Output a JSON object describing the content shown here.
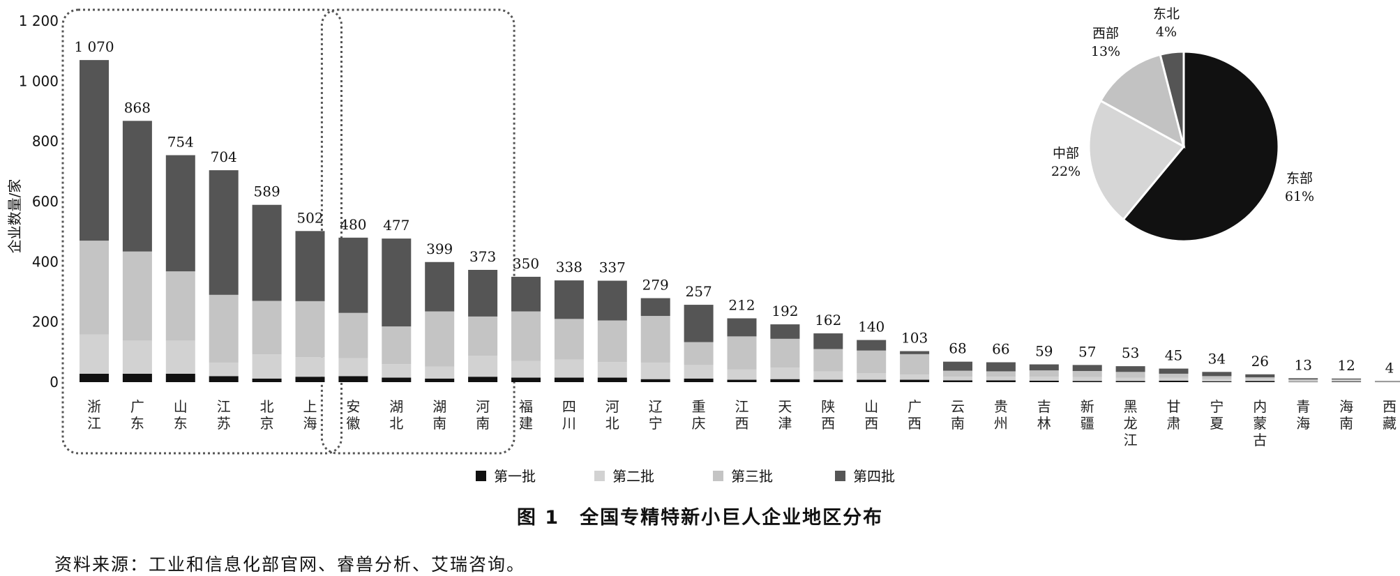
{
  "figure": {
    "title": "图 1　全国专精特新小巨人企业地区分布",
    "source": "资料来源：工业和信息化部官网、睿兽分析、艾瑞咨询。"
  },
  "chart_data": [
    {
      "type": "bar",
      "stacked": true,
      "ylabel": "企业数量/家",
      "ylim": [
        0,
        1200
      ],
      "yticks": [
        "0",
        "200",
        "400",
        "600",
        "800",
        "1 000",
        "1 200"
      ],
      "grid": false,
      "legend_position": "bottom",
      "categories": [
        "浙江",
        "广东",
        "山东",
        "江苏",
        "北京",
        "上海",
        "安徽",
        "湖北",
        "湖南",
        "河南",
        "福建",
        "四川",
        "河北",
        "辽宁",
        "重庆",
        "江西",
        "天津",
        "陕西",
        "山西",
        "广西",
        "云南",
        "贵州",
        "吉林",
        "新疆",
        "黑龙江",
        "甘肃",
        "宁夏",
        "内蒙古",
        "青海",
        "海南",
        "西藏"
      ],
      "total_labels": [
        "1 070",
        "868",
        "754",
        "704",
        "589",
        "502",
        "480",
        "477",
        "399",
        "373",
        "350",
        "338",
        "337",
        "279",
        "257",
        "212",
        "192",
        "162",
        "140",
        "103",
        "68",
        "66",
        "59",
        "57",
        "53",
        "45",
        "34",
        "26",
        "13",
        "12",
        "4"
      ],
      "totals": [
        1070,
        868,
        754,
        704,
        589,
        502,
        480,
        477,
        399,
        373,
        350,
        338,
        337,
        279,
        257,
        212,
        192,
        162,
        140,
        103,
        68,
        66,
        59,
        57,
        53,
        45,
        34,
        26,
        13,
        12,
        4
      ],
      "series": [
        {
          "name": "第一批",
          "color": "#111111",
          "values": [
            28,
            28,
            28,
            20,
            12,
            18,
            20,
            15,
            12,
            18,
            15,
            15,
            15,
            10,
            12,
            8,
            10,
            8,
            8,
            8,
            6,
            6,
            5,
            4,
            4,
            5,
            3,
            4,
            1,
            2,
            1
          ]
        },
        {
          "name": "第二批",
          "color": "#d2d2d2",
          "values": [
            130,
            110,
            110,
            45,
            80,
            65,
            60,
            45,
            40,
            70,
            55,
            60,
            52,
            55,
            45,
            34,
            38,
            28,
            22,
            17,
            12,
            12,
            13,
            13,
            11,
            10,
            7,
            6,
            3,
            3,
            1
          ]
        },
        {
          "name": "第三批",
          "color": "#c4c4c4",
          "values": [
            312,
            296,
            230,
            225,
            178,
            186,
            150,
            125,
            183,
            130,
            165,
            135,
            138,
            155,
            76,
            110,
            96,
            74,
            75,
            68,
            20,
            18,
            21,
            20,
            19,
            13,
            10,
            6,
            5,
            4,
            1
          ]
        },
        {
          "name": "第四批",
          "color": "#555555",
          "values": [
            600,
            434,
            386,
            414,
            319,
            233,
            250,
            292,
            164,
            155,
            115,
            128,
            132,
            59,
            124,
            60,
            48,
            52,
            35,
            10,
            30,
            30,
            20,
            20,
            19,
            17,
            14,
            10,
            4,
            3,
            1
          ]
        }
      ],
      "annotations": [
        "dashed box around 浙江–上海",
        "dashed box around 安徽–河南"
      ]
    },
    {
      "type": "pie",
      "slices": [
        {
          "name": "东部",
          "label": "61%",
          "value": 61,
          "color": "#111111"
        },
        {
          "name": "中部",
          "label": "22%",
          "value": 22,
          "color": "#d6d6d6"
        },
        {
          "name": "西部",
          "label": "13%",
          "value": 13,
          "color": "#c2c2c2"
        },
        {
          "name": "东北",
          "label": "4%",
          "value": 4,
          "color": "#555555"
        }
      ]
    }
  ]
}
